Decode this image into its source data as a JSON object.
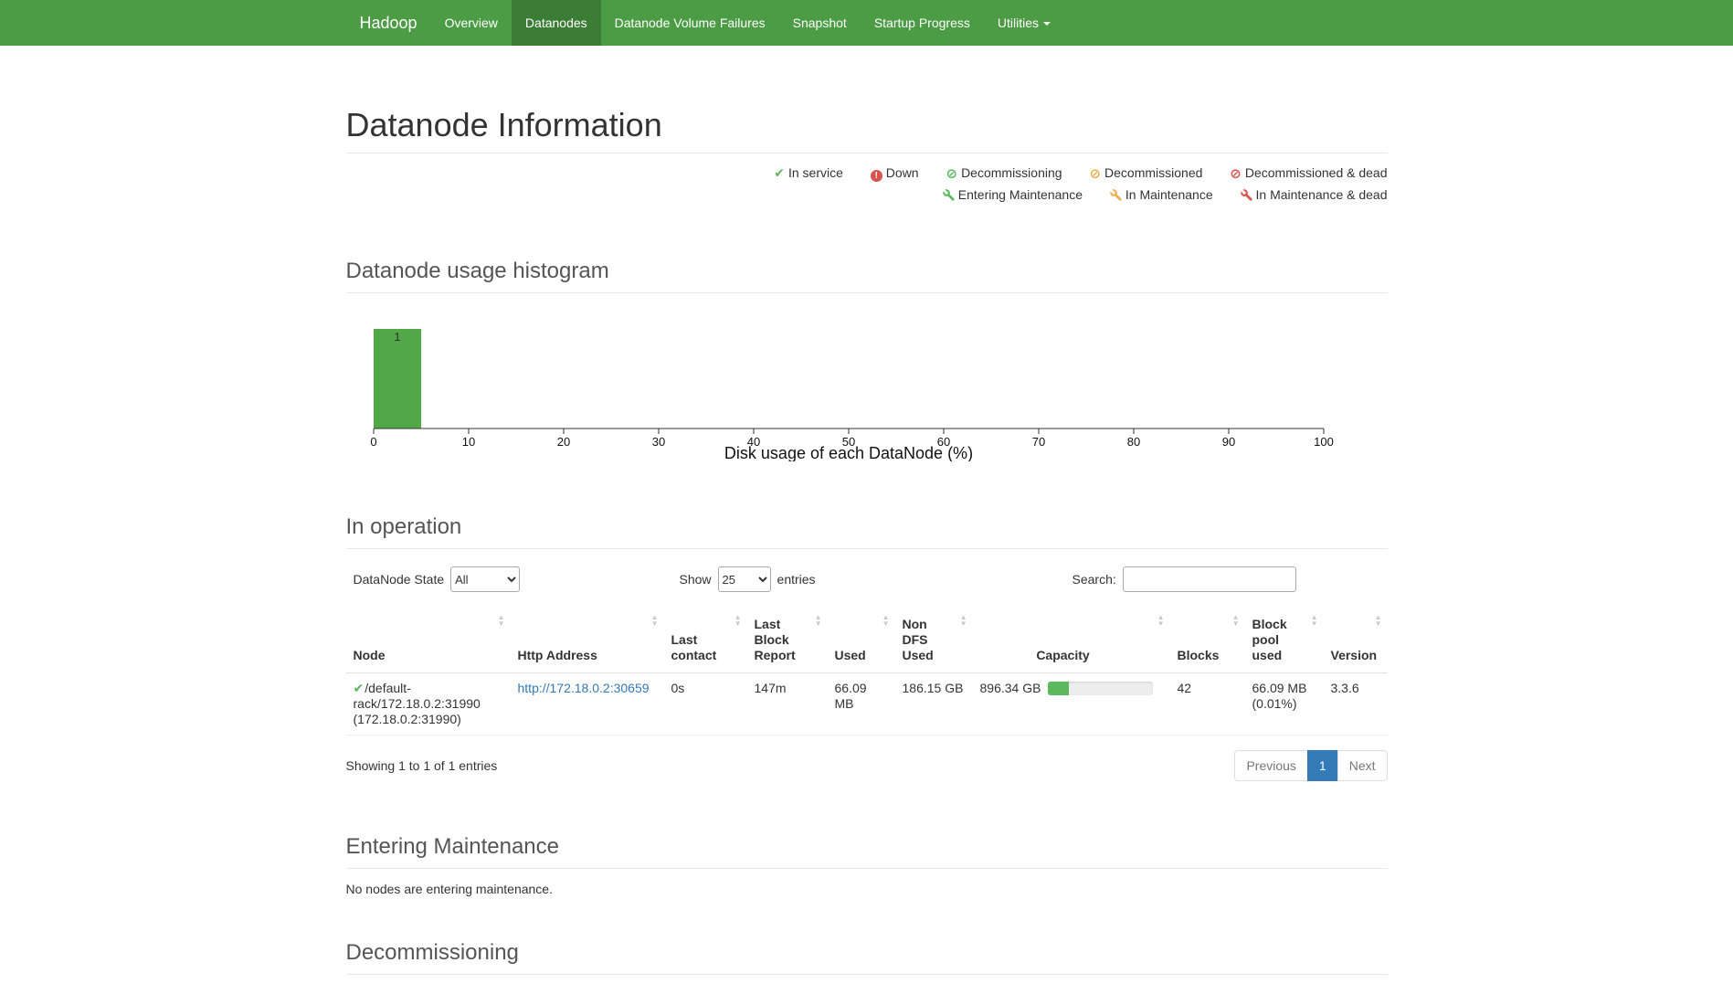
{
  "colors": {
    "navbar_green": "#4c9b45",
    "navbar_active_green": "#3b7d35",
    "success_green": "#5cb85c",
    "warning_orange": "#f0ad4e",
    "danger_red": "#d9534f",
    "link_blue": "#337ab7",
    "pagination_active_blue": "#337ab7",
    "histogram_bar_green": "#52a847"
  },
  "navbar": {
    "brand": "Hadoop",
    "items": [
      {
        "label": "Overview",
        "active": false
      },
      {
        "label": "Datanodes",
        "active": true
      },
      {
        "label": "Datanode Volume Failures",
        "active": false
      },
      {
        "label": "Snapshot",
        "active": false
      },
      {
        "label": "Startup Progress",
        "active": false
      },
      {
        "label": "Utilities",
        "active": false,
        "dropdown": true
      }
    ]
  },
  "page": {
    "title": "Datanode Information"
  },
  "legend": {
    "row1": [
      {
        "icon": "check-icon",
        "label": "In service",
        "color": "#5cb85c"
      },
      {
        "icon": "exclamation-circle-icon",
        "label": "Down",
        "color": "#d9534f"
      },
      {
        "icon": "ban-circle-icon",
        "label": "Decommissioning",
        "color": "#5cb85c"
      },
      {
        "icon": "ban-circle-icon",
        "label": "Decommissioned",
        "color": "#f0ad4e"
      },
      {
        "icon": "ban-circle-icon",
        "label": "Decommissioned & dead",
        "color": "#d9534f"
      }
    ],
    "row2": [
      {
        "icon": "wrench-icon",
        "label": "Entering Maintenance",
        "color": "#5cb85c"
      },
      {
        "icon": "wrench-icon",
        "label": "In Maintenance",
        "color": "#f0ad4e"
      },
      {
        "icon": "wrench-icon",
        "label": "In Maintenance & dead",
        "color": "#d9534f"
      }
    ]
  },
  "sections": {
    "histogram_title": "Datanode usage histogram",
    "in_operation_title": "In operation",
    "entering_maintenance_title": "Entering Maintenance",
    "entering_maintenance_empty": "No nodes are entering maintenance.",
    "decommissioning_title": "Decommissioning"
  },
  "chart_data": {
    "type": "bar",
    "title": "Datanode usage histogram",
    "xlabel": "Disk usage of each DataNode (%)",
    "ylabel": "",
    "xlim": [
      0,
      100
    ],
    "xticks": [
      0,
      10,
      20,
      30,
      40,
      50,
      60,
      70,
      80,
      90,
      100
    ],
    "bins": [
      {
        "x0": 0,
        "x1": 5,
        "count": 1
      }
    ],
    "bar_color": "#52a847",
    "grid": false,
    "legend_position": "none"
  },
  "controls": {
    "state_label": "DataNode State",
    "state_value": "All",
    "show_label": "Show",
    "show_value": "25",
    "entries_label": "entries",
    "search_label": "Search:",
    "search_value": ""
  },
  "table": {
    "columns": [
      "Node",
      "Http Address",
      "Last contact",
      "Last Block Report",
      "Used",
      "Non DFS Used",
      "Capacity",
      "Blocks",
      "Block pool used",
      "Version"
    ],
    "rows": [
      {
        "node_icon": "check-icon",
        "node": "/default-rack/172.18.0.2:31990 (172.18.0.2:31990)",
        "http_address": "http://172.18.0.2:30659",
        "last_contact": "0s",
        "last_block_report": "147m",
        "used": "66.09 MB",
        "non_dfs_used": "186.15 GB",
        "capacity": "896.34 GB",
        "capacity_bar_percent": 20,
        "blocks": "42",
        "block_pool_used": "66.09 MB (0.01%)",
        "version": "3.3.6"
      }
    ],
    "summary": "Showing 1 to 1 of 1 entries",
    "pagination": {
      "previous": "Previous",
      "page": "1",
      "next": "Next"
    }
  }
}
